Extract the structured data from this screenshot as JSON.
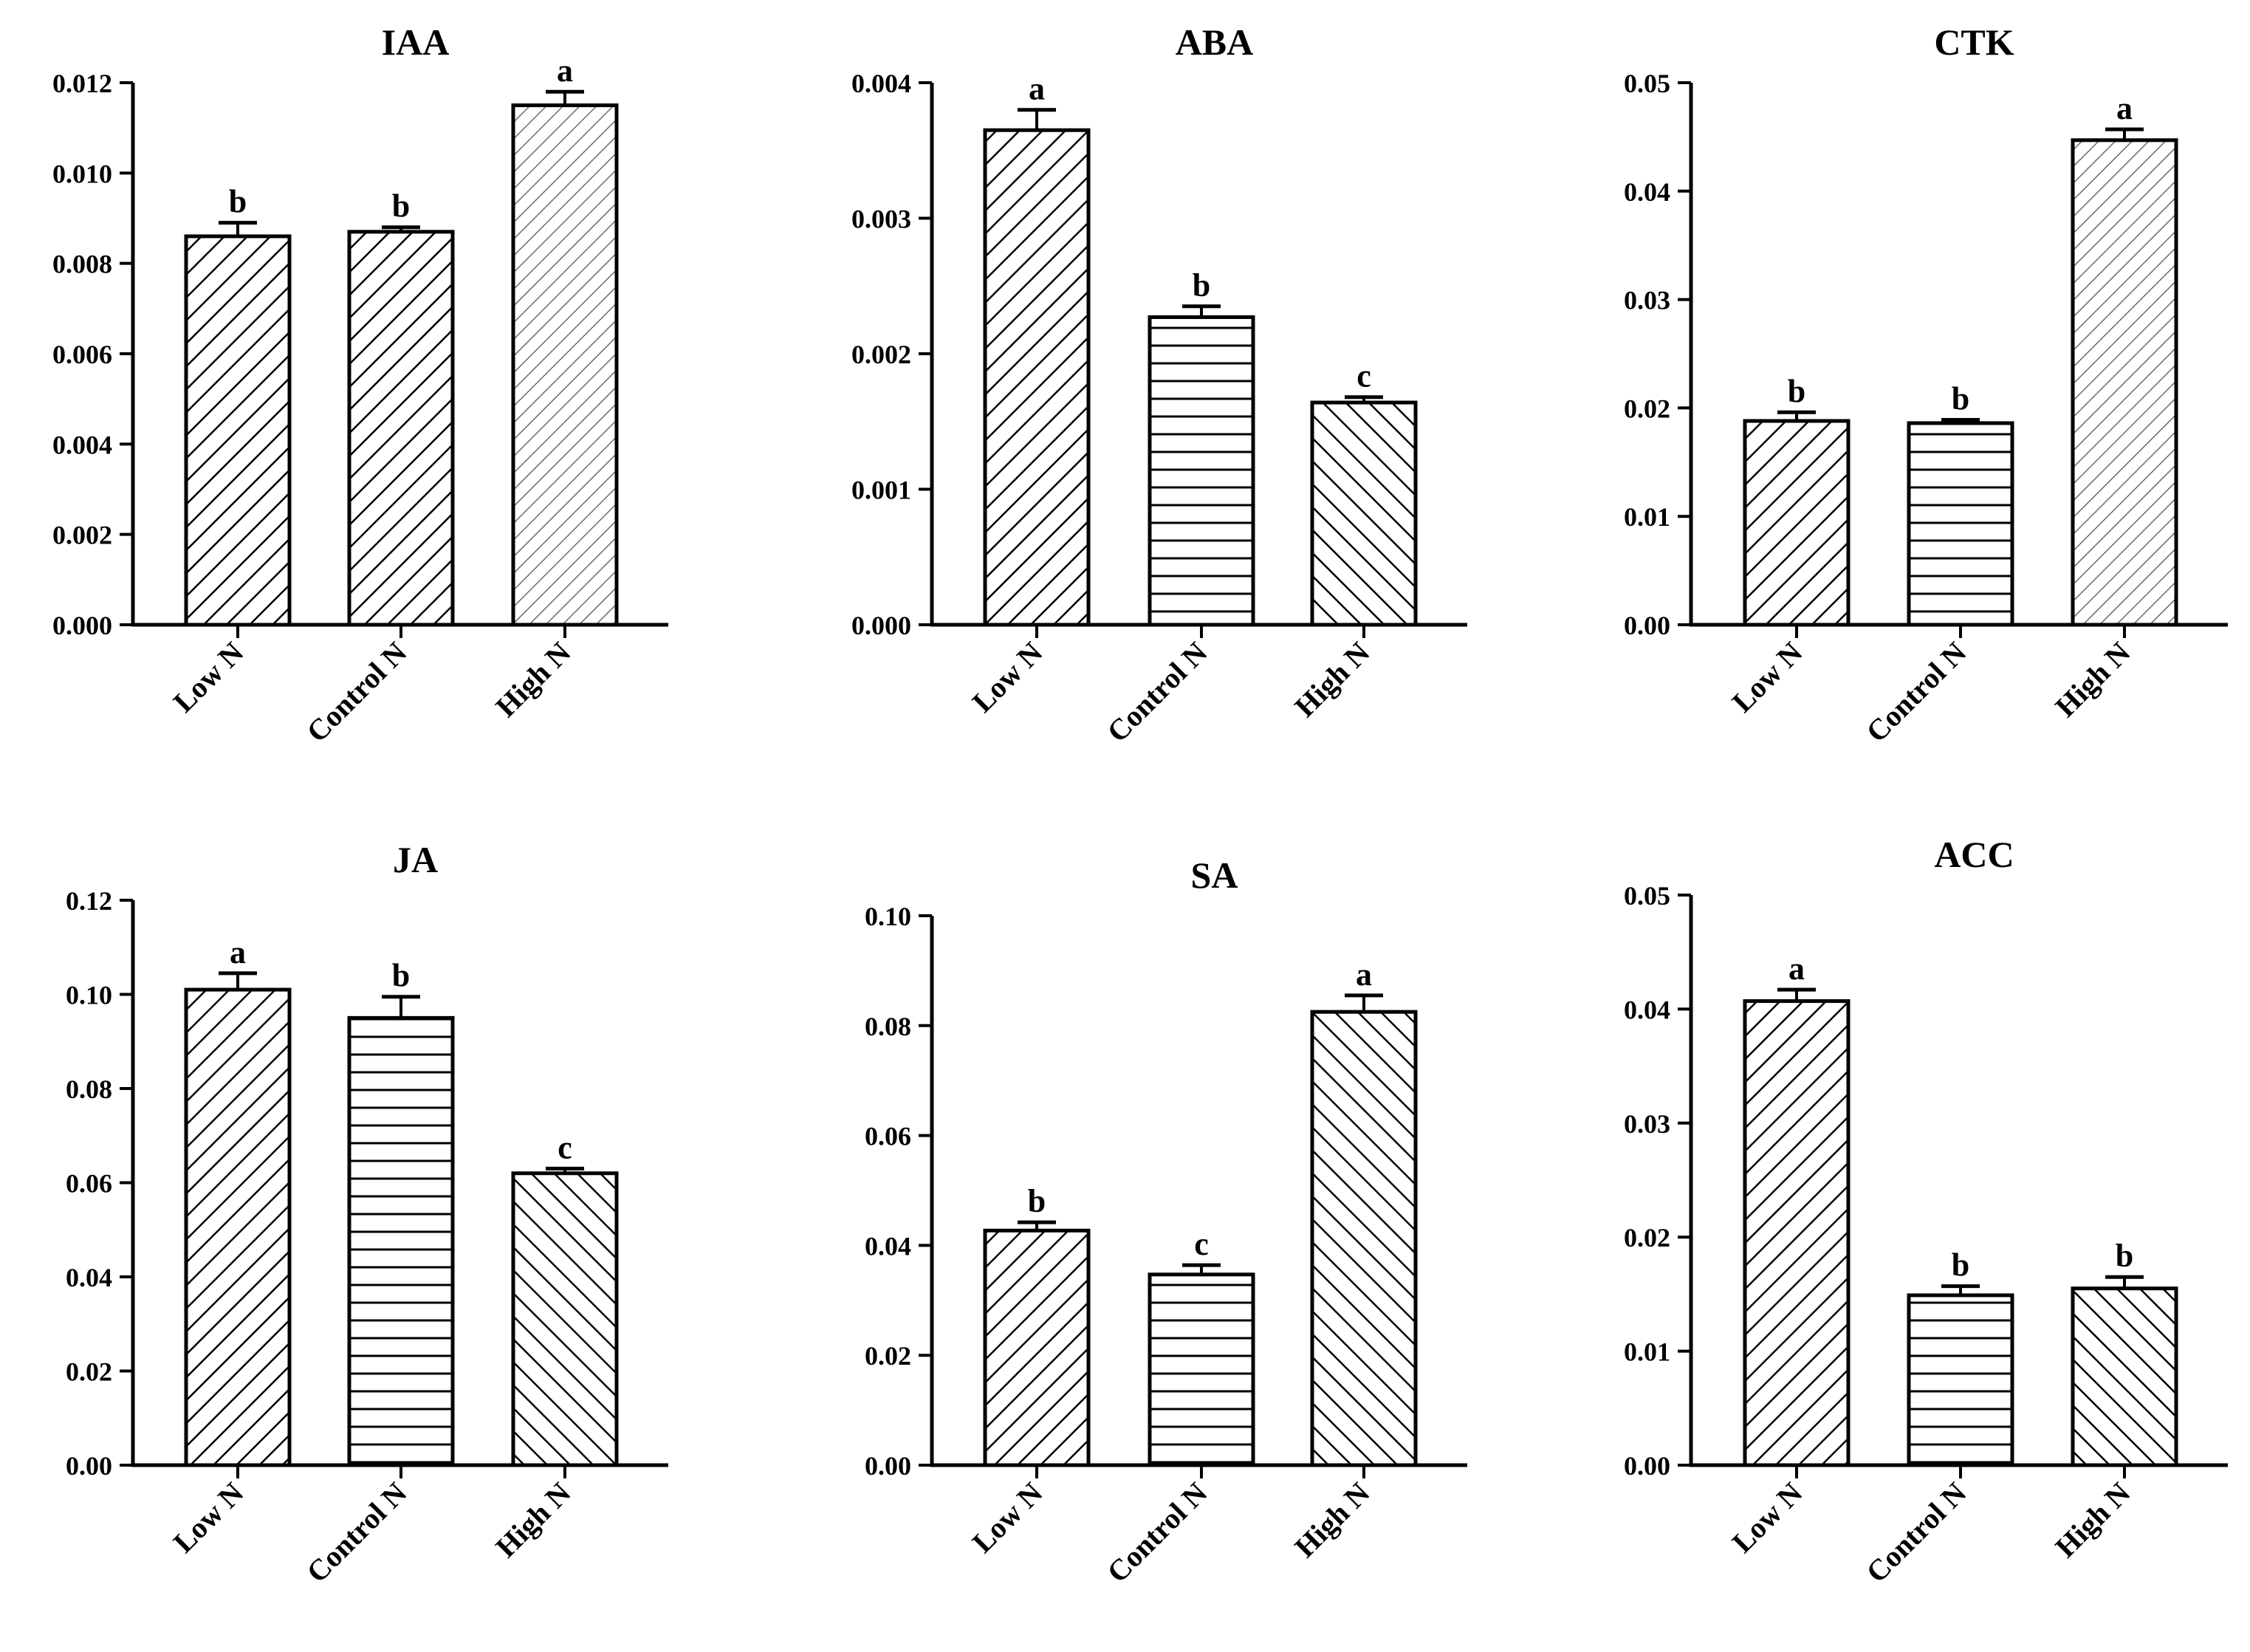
{
  "chart_data": [
    {
      "type": "bar",
      "title": "IAA",
      "categories": [
        "Low N",
        "Control N",
        "High N"
      ],
      "values": [
        0.0086,
        0.0087,
        0.0115
      ],
      "errors": [
        0.0003,
        0.0001,
        0.0003
      ],
      "significance": [
        "b",
        "b",
        "a"
      ],
      "ylim": [
        0,
        0.012
      ],
      "yticks": [
        "0.000",
        "0.002",
        "0.004",
        "0.006",
        "0.008",
        "0.010",
        "0.012"
      ],
      "xlabel": "",
      "ylabel": ""
    },
    {
      "type": "bar",
      "title": "ABA",
      "categories": [
        "Low N",
        "Control N",
        "High N"
      ],
      "values": [
        0.00365,
        0.00227,
        0.00164
      ],
      "errors": [
        0.00015,
        8e-05,
        4e-05
      ],
      "significance": [
        "a",
        "b",
        "c"
      ],
      "ylim": [
        0,
        0.004
      ],
      "yticks": [
        "0.000",
        "0.001",
        "0.002",
        "0.003",
        "0.004"
      ],
      "xlabel": "",
      "ylabel": ""
    },
    {
      "type": "bar",
      "title": "CTK",
      "categories": [
        "Low N",
        "Control N",
        "High N"
      ],
      "values": [
        0.0188,
        0.0186,
        0.0447
      ],
      "errors": [
        0.0008,
        0.0003,
        0.001
      ],
      "significance": [
        "b",
        "b",
        "a"
      ],
      "ylim": [
        0,
        0.05
      ],
      "yticks": [
        "0.00",
        "0.01",
        "0.02",
        "0.03",
        "0.04",
        "0.05"
      ],
      "xlabel": "",
      "ylabel": ""
    },
    {
      "type": "bar",
      "title": "JA",
      "categories": [
        "Low N",
        "Control N",
        "High N"
      ],
      "values": [
        0.101,
        0.095,
        0.062
      ],
      "errors": [
        0.0035,
        0.0045,
        0.001
      ],
      "significance": [
        "a",
        "b",
        "c"
      ],
      "ylim": [
        0,
        0.12
      ],
      "yticks": [
        "0.00",
        "0.02",
        "0.04",
        "0.06",
        "0.08",
        "0.10",
        "0.12"
      ],
      "xlabel": "",
      "ylabel": ""
    },
    {
      "type": "bar",
      "title": "SA",
      "categories": [
        "Low N",
        "Control N",
        "High N"
      ],
      "values": [
        0.0427,
        0.0347,
        0.0825
      ],
      "errors": [
        0.0015,
        0.0017,
        0.003
      ],
      "significance": [
        "b",
        "c",
        "a"
      ],
      "ylim": [
        0,
        0.1
      ],
      "yticks": [
        "0.00",
        "0.02",
        "0.04",
        "0.06",
        "0.08",
        "0.10"
      ],
      "xlabel": "",
      "ylabel": ""
    },
    {
      "type": "bar",
      "title": "ACC",
      "categories": [
        "Low N",
        "Control N",
        "High N"
      ],
      "values": [
        0.0407,
        0.0149,
        0.0155
      ],
      "errors": [
        0.001,
        0.0008,
        0.001
      ],
      "significance": [
        "a",
        "b",
        "b"
      ],
      "ylim": [
        0,
        0.05
      ],
      "yticks": [
        "0.00",
        "0.01",
        "0.02",
        "0.03",
        "0.04",
        "0.05"
      ],
      "xlabel": "",
      "ylabel": ""
    }
  ]
}
